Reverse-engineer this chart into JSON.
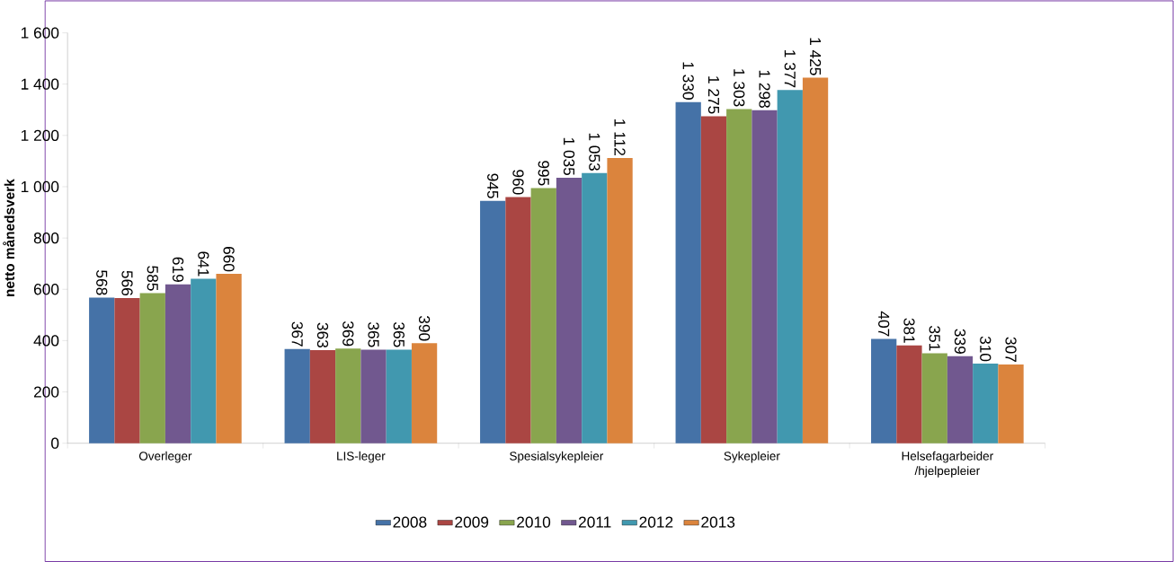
{
  "chart_data": {
    "type": "bar",
    "ylabel": "netto månedsverk",
    "categories": [
      "Overleger",
      "LIS-leger",
      "Spesialsykepleier",
      "Sykepleier",
      "Helsefagarbeider /hjelpepleier"
    ],
    "series": [
      {
        "name": "2008",
        "color": "#4572a7",
        "values": [
          568,
          367,
          945,
          1330,
          407
        ],
        "value_labels": [
          "568",
          "367",
          "945",
          "1 330",
          "407"
        ]
      },
      {
        "name": "2009",
        "color": "#aa4643",
        "values": [
          566,
          363,
          960,
          1275,
          381
        ],
        "value_labels": [
          "566",
          "363",
          "960",
          "1 275",
          "381"
        ]
      },
      {
        "name": "2010",
        "color": "#89a54e",
        "values": [
          585,
          369,
          995,
          1303,
          351
        ],
        "value_labels": [
          "585",
          "369",
          "995",
          "1 303",
          "351"
        ]
      },
      {
        "name": "2011",
        "color": "#71588f",
        "values": [
          619,
          365,
          1035,
          1298,
          339
        ],
        "value_labels": [
          "619",
          "365",
          "1 035",
          "1 298",
          "339"
        ]
      },
      {
        "name": "2012",
        "color": "#4198af",
        "values": [
          641,
          365,
          1053,
          1377,
          310
        ],
        "value_labels": [
          "641",
          "365",
          "1 053",
          "1 377",
          "310"
        ]
      },
      {
        "name": "2013",
        "color": "#db843d",
        "values": [
          660,
          390,
          1112,
          1425,
          307
        ],
        "value_labels": [
          "660",
          "390",
          "1 112",
          "1 425",
          "307"
        ]
      }
    ],
    "ylim": [
      0,
      1600
    ],
    "yticks": [
      0,
      200,
      400,
      600,
      800,
      {
        "value": 1000,
        "label": "1 000"
      },
      {
        "value": 1200,
        "label": "1 200"
      },
      {
        "value": 1400,
        "label": "1 400"
      },
      {
        "value": 1600,
        "label": "1 600"
      }
    ],
    "legend": "bottom",
    "grid": false
  }
}
